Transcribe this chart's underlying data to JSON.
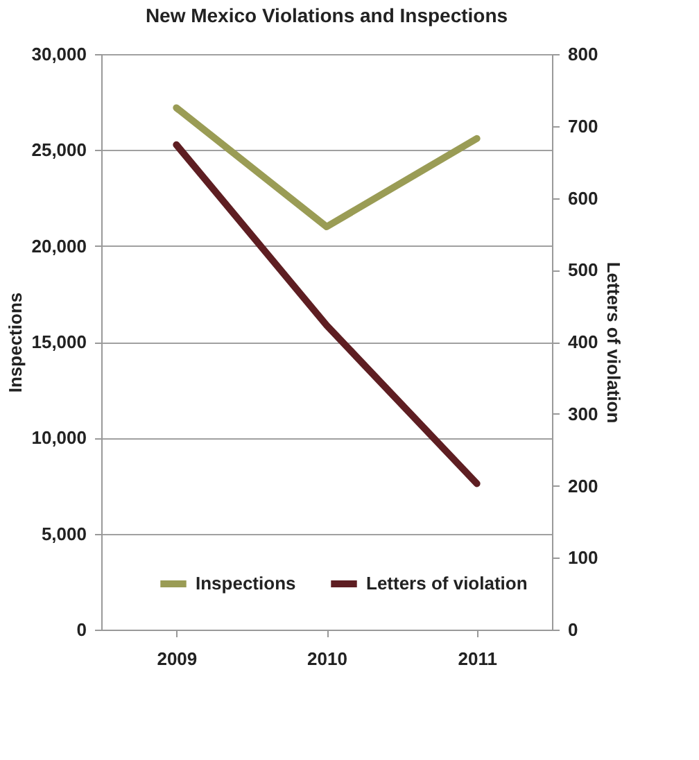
{
  "chart_data": {
    "type": "line",
    "title": "New Mexico Violations and Inspections",
    "ylabel": "Inspections",
    "y2label": "Letters of violation",
    "categories": [
      "2009",
      "2010",
      "2011"
    ],
    "series": [
      {
        "name": "Inspections",
        "color": "#9a9c55",
        "values": [
          27200,
          21000,
          25600
        ]
      },
      {
        "name": "Letters of violation",
        "color": "#5e1e22",
        "axis": "y2",
        "values": [
          674,
          423,
          203
        ]
      }
    ],
    "ylim": [
      0,
      30000
    ],
    "yticks": [
      {
        "value": 0,
        "label": "0"
      },
      {
        "value": 5000,
        "label": "5,000"
      },
      {
        "value": 10000,
        "label": "10,000"
      },
      {
        "value": 15000,
        "label": "15,000"
      },
      {
        "value": 20000,
        "label": "20,000"
      },
      {
        "value": 25000,
        "label": "25,000"
      },
      {
        "value": 30000,
        "label": "30,000"
      }
    ],
    "y2lim": [
      0,
      800
    ],
    "y2ticks": [
      0,
      100,
      200,
      300,
      400,
      500,
      600,
      700,
      800
    ],
    "grid": "y",
    "legend": "bottom",
    "marker": "none",
    "line_style": "solid"
  }
}
